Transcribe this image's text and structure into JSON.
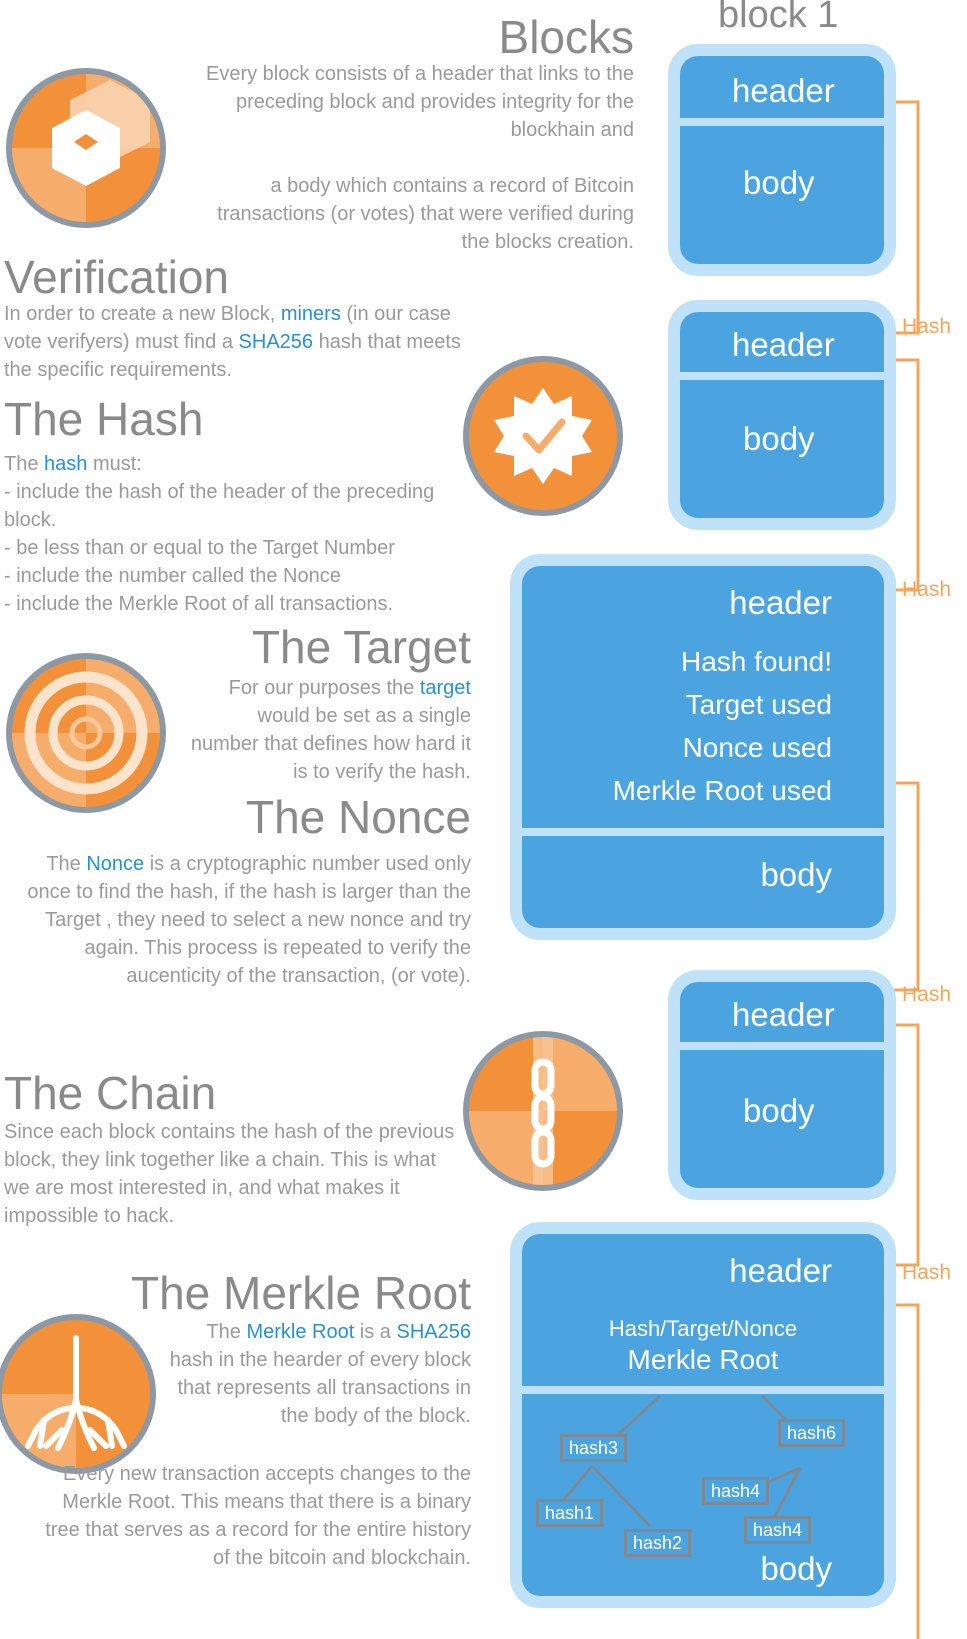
{
  "sections": {
    "blocks": {
      "title": "Blocks",
      "p1": "Every block consists of a header that links to the preceding block and provides integrity for the blockhain and",
      "p2": "a body which contains a record of Bitcoin transactions (or votes) that were verified during the blocks creation."
    },
    "verification": {
      "title": "Verification",
      "t1": "In order to create a new Block, ",
      "k1": "miners",
      "t2": " (in our case vote verifyers) must find a ",
      "k2": "SHA256",
      "t3": " hash that meets the specific requirements."
    },
    "hash": {
      "title": "The Hash",
      "intro_pre": "The ",
      "intro_key": "hash",
      "intro_post": " must:",
      "items": [
        "- include the hash of the header of the preceding block.",
        "- be less than or equal to the Target Number",
        "- include the number called the Nonce",
        "- include the Merkle Root of all transactions."
      ]
    },
    "target": {
      "title": "The Target",
      "t1": "For our purposes the ",
      "k1": "target",
      "t2": " would be set as a single number that defines how hard it is to verify the hash."
    },
    "nonce": {
      "title": "The Nonce",
      "t1": "The ",
      "k1": "Nonce",
      "t2": " is a cryptographic number used only once to find the hash, if the hash is larger than the Target , they need to select a new nonce and try again. This process is repeated to verify the aucenticity of the transaction, (or vote)."
    },
    "chain": {
      "title": "The Chain",
      "text": "Since each block contains the hash of the previous block, they link together like a chain. This is what we are most interested in, and what makes it impossible to hack."
    },
    "merkle": {
      "title": "The Merkle Root",
      "t1": "The ",
      "k1": "Merkle Root",
      "t2": " is a ",
      "k2": "SHA256",
      "t3": " hash in the hearder of every block that represents all transactions in the body of the block.",
      "p2": "Every new transaction accepts changes to the Merkle Root. This means that there is a binary tree that serves as a record for the entire history of the bitcoin and blockchain."
    }
  },
  "chain_diagram": {
    "block1_label": "block 1",
    "header": "header",
    "body": "body",
    "link_label": "Hash",
    "found_lines": [
      "Hash found!",
      "Target used",
      "Nonce used",
      "Merkle Root used"
    ],
    "merkle_sub": "Hash/Target/Nonce",
    "merkle_root": "Merkle Root",
    "tree_hashes": [
      "hash3",
      "hash6",
      "hash4",
      "hash1",
      "hash4",
      "hash2"
    ]
  },
  "colors": {
    "accent_orange": "#f4a55a",
    "icon_orange": "#f2913a",
    "block_blue": "#4ba4e0",
    "block_border": "#bfe2f8",
    "keyword_blue": "#2a8fd6",
    "icon_ring": "#8c98a4"
  },
  "icons": [
    "block-cube-icon",
    "verified-badge-icon",
    "target-icon",
    "chain-icon",
    "tree-root-icon"
  ]
}
